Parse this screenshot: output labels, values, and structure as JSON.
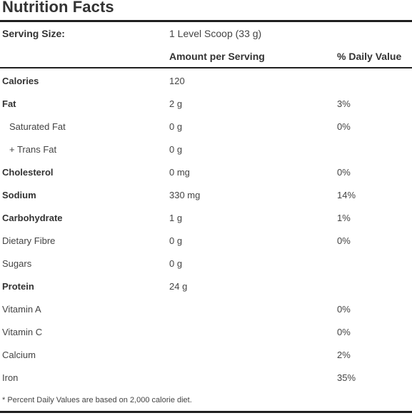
{
  "title": "Nutrition Facts",
  "serving": {
    "label": "Serving Size:",
    "value": "1 Level Scoop (33 g)"
  },
  "columns": {
    "amount": "Amount per Serving",
    "daily_value": "% Daily Value"
  },
  "rows": [
    {
      "name": "Calories",
      "amount": "120",
      "dv": ""
    },
    {
      "name": "Fat",
      "amount": "2 g",
      "dv": "3%"
    },
    {
      "name": "Saturated Fat",
      "amount": "0 g",
      "dv": "0%"
    },
    {
      "name": "+ Trans Fat",
      "amount": "0 g",
      "dv": ""
    },
    {
      "name": "Cholesterol",
      "amount": "0 mg",
      "dv": "0%"
    },
    {
      "name": "Sodium",
      "amount": "330 mg",
      "dv": "14%"
    },
    {
      "name": "Carbohydrate",
      "amount": "1 g",
      "dv": "1%"
    },
    {
      "name": "Dietary Fibre",
      "amount": "0 g",
      "dv": "0%"
    },
    {
      "name": "Sugars",
      "amount": "0 g",
      "dv": ""
    },
    {
      "name": "Protein",
      "amount": "24 g",
      "dv": ""
    },
    {
      "name": "Vitamin A",
      "amount": "",
      "dv": "0%"
    },
    {
      "name": "Vitamin C",
      "amount": "",
      "dv": "0%"
    },
    {
      "name": "Calcium",
      "amount": "",
      "dv": "2%"
    },
    {
      "name": "Iron",
      "amount": "",
      "dv": "35%"
    }
  ],
  "footnote": "* Percent Daily Values are based on 2,000 calorie diet."
}
